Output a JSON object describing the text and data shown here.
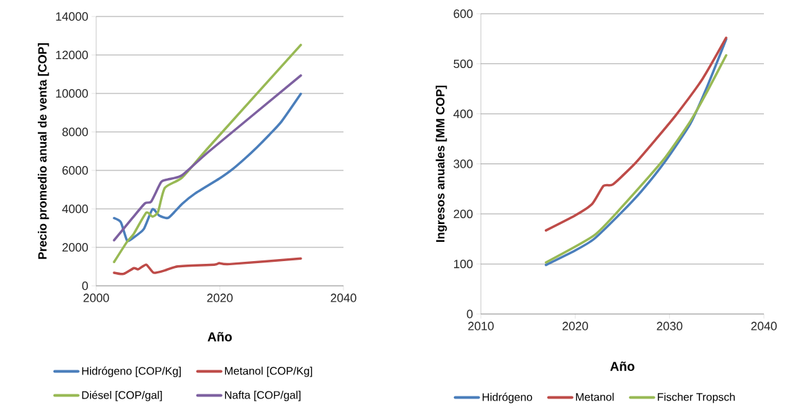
{
  "chart_data": [
    {
      "type": "line",
      "xlabel": "Año",
      "ylabel": "Precio promedio anual de venta [COP]",
      "xlim": [
        2000,
        2040
      ],
      "ylim": [
        0,
        14000
      ],
      "xticks": [
        2000,
        2020,
        2040
      ],
      "yticks": [
        0,
        2000,
        4000,
        6000,
        8000,
        10000,
        12000,
        14000
      ],
      "grid": "y",
      "legend": "bottom",
      "series": [
        {
          "name": "Hidrógeno [COP/Kg]",
          "color": "#4a7ebb",
          "x": [
            2002.9,
            2004,
            2005.0,
            2006,
            2007.7,
            2009.1,
            2010.2,
            2011.7,
            2013.9,
            2016,
            2019.9,
            2022,
            2024,
            2026,
            2028,
            2030,
            2033.1
          ],
          "values": [
            3520,
            3300,
            2350,
            2500,
            2950,
            3980,
            3650,
            3540,
            4260,
            4800,
            5570,
            6050,
            6600,
            7200,
            7850,
            8550,
            9980
          ]
        },
        {
          "name": "Metanol [COP/Kg]",
          "color": "#be4b48",
          "x": [
            2002.9,
            2004.4,
            2006.1,
            2006.8,
            2008.1,
            2009.3,
            2011.1,
            2013.2,
            2019.1,
            2019.9,
            2021.6,
            2033.1
          ],
          "values": [
            680,
            620,
            920,
            860,
            1100,
            680,
            800,
            1010,
            1100,
            1180,
            1130,
            1420
          ]
        },
        {
          "name": "Diésel [COP/gal]",
          "color": "#98b954",
          "x": [
            2002.9,
            2005.0,
            2006.1,
            2008.1,
            2009.1,
            2010.0,
            2011.1,
            2013.9,
            2018.3,
            2033.1
          ],
          "values": [
            1240,
            2290,
            2710,
            3800,
            3600,
            3840,
            5090,
            5630,
            7240,
            12520
          ]
        },
        {
          "name": "Nafta [COP/gal]",
          "color": "#7d60a0",
          "x": [
            2002.9,
            2005.9,
            2007.9,
            2008.9,
            2010.5,
            2011.6,
            2013.9,
            2018.3,
            2033.1
          ],
          "values": [
            2370,
            3540,
            4290,
            4380,
            5390,
            5530,
            5750,
            7000,
            10930
          ]
        }
      ]
    },
    {
      "type": "line",
      "xlabel": "Año",
      "ylabel": "Ingresos anuales [MM COP]",
      "xlim": [
        2010,
        2040
      ],
      "ylim": [
        0,
        600
      ],
      "xticks": [
        2010,
        2020,
        2030,
        2040
      ],
      "yticks": [
        0,
        100,
        200,
        300,
        400,
        500,
        600
      ],
      "grid": "y",
      "legend": "bottom",
      "series": [
        {
          "name": "Hidrógeno",
          "color": "#4a7ebb",
          "x": [
            2016.9,
            2020,
            2022,
            2024.8,
            2027,
            2029.5,
            2032.2,
            2034,
            2036.0
          ],
          "values": [
            98,
            127,
            150,
            201,
            245,
            304,
            380,
            455,
            549
          ]
        },
        {
          "name": "Metanol",
          "color": "#be4b48",
          "x": [
            2016.9,
            2020.0,
            2021.8,
            2023.0,
            2024.0,
            2026.3,
            2028.5,
            2030.7,
            2033.5,
            2036.0
          ],
          "values": [
            167,
            197,
            220,
            256,
            259,
            300,
            348,
            398,
            470,
            552
          ]
        },
        {
          "name": "Fischer Tropsch",
          "color": "#98b954",
          "x": [
            2016.9,
            2022.0,
            2025,
            2029.3,
            2032.2,
            2034,
            2036.0
          ],
          "values": [
            103,
            157,
            215,
            307,
            385,
            445,
            517
          ]
        }
      ]
    }
  ]
}
